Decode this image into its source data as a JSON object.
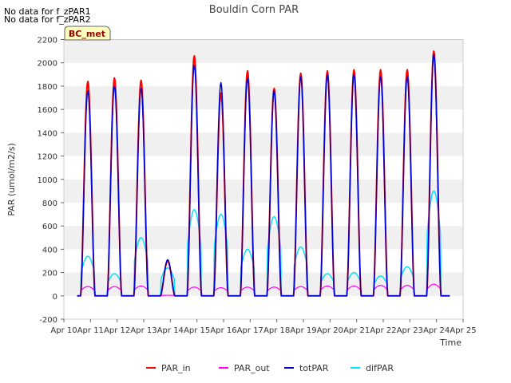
{
  "header": {
    "notes": [
      "No data for f_zPAR1",
      "No data for f_zPAR2"
    ],
    "site_badge": "BC_met"
  },
  "chart_data": {
    "type": "line",
    "title": "Bouldin Corn PAR",
    "xlabel": "Time",
    "ylabel": "PAR (umol/m2/s)",
    "ylim": [
      -200,
      2200
    ],
    "yticks": [
      -200,
      0,
      200,
      400,
      600,
      800,
      1000,
      1200,
      1400,
      1600,
      1800,
      2000,
      2200
    ],
    "xlim": [
      10,
      25
    ],
    "xticks": [
      10,
      11,
      12,
      13,
      14,
      15,
      16,
      17,
      18,
      19,
      20,
      21,
      22,
      23,
      24,
      25
    ],
    "xtick_labels": [
      "Apr 10",
      "Apr 11",
      "Apr 12",
      "Apr 13",
      "Apr 14",
      "Apr 15",
      "Apr 16",
      "Apr 17",
      "Apr 18",
      "Apr 19",
      "Apr 20",
      "Apr 21",
      "Apr 22",
      "Apr 23",
      "Apr 24",
      "Apr 25"
    ],
    "grid_bands": true,
    "legend_position": "bottom",
    "series": [
      {
        "name": "PAR_in",
        "color": "#ff0000",
        "daily_peak": [
          1840,
          1870,
          1850,
          300,
          2060,
          1740,
          1930,
          1780,
          1910,
          1930,
          1940,
          1940,
          1940,
          2100
        ]
      },
      {
        "name": "PAR_out",
        "color": "#ff00ff",
        "daily_peak": [
          80,
          80,
          85,
          5,
          75,
          70,
          75,
          75,
          80,
          85,
          85,
          90,
          90,
          100
        ]
      },
      {
        "name": "totPAR",
        "color": "#0000cc",
        "daily_peak": [
          1760,
          1800,
          1780,
          310,
          1980,
          1830,
          1870,
          1760,
          1880,
          1900,
          1900,
          1880,
          1880,
          2070
        ]
      },
      {
        "name": "difPAR",
        "color": "#00e5ff",
        "daily_peak": [
          340,
          190,
          500,
          240,
          740,
          700,
          400,
          680,
          420,
          190,
          200,
          170,
          250,
          900
        ]
      }
    ]
  }
}
